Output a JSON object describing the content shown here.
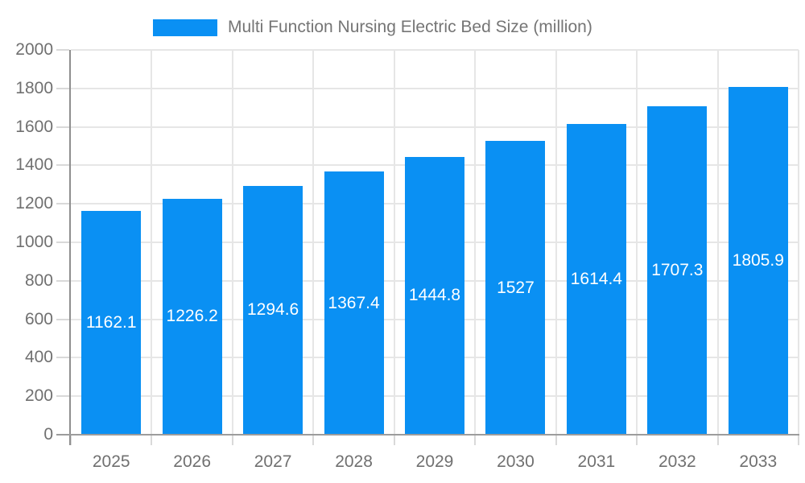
{
  "chart_data": {
    "type": "bar",
    "title": "Multi Function Nursing Electric Bed Size (million)",
    "legend_position": "top",
    "categories": [
      "2025",
      "2026",
      "2027",
      "2028",
      "2029",
      "2030",
      "2031",
      "2032",
      "2033"
    ],
    "series": [
      {
        "name": "Multi Function Nursing Electric Bed Size (million)",
        "values": [
          1162.1,
          1226.2,
          1294.6,
          1367.4,
          1444.8,
          1527,
          1614.4,
          1707.3,
          1805.9
        ],
        "value_labels": [
          "1162.1",
          "1226.2",
          "1294.6",
          "1367.4",
          "1444.8",
          "1527",
          "1614.4",
          "1707.3",
          "1805.9"
        ]
      }
    ],
    "xlabel": "",
    "ylabel": "",
    "ylim": [
      0,
      2000
    ],
    "ytick_step": 200,
    "yticks": [
      0,
      200,
      400,
      600,
      800,
      1000,
      1200,
      1400,
      1600,
      1800,
      2000
    ],
    "grid": true,
    "bar_label_position": "center-inside",
    "colors": {
      "bar": "#0A90F3",
      "bar_label_text": "#FFFFFF",
      "legend_text": "#757575",
      "axis_text": "#707070",
      "gridline": "#E6E6E6",
      "tick": "#D9D9D9",
      "y_axis_line": "#8F8F8F",
      "x_axis_line": "#9C9C9C",
      "background": "#FFFFFF"
    }
  }
}
